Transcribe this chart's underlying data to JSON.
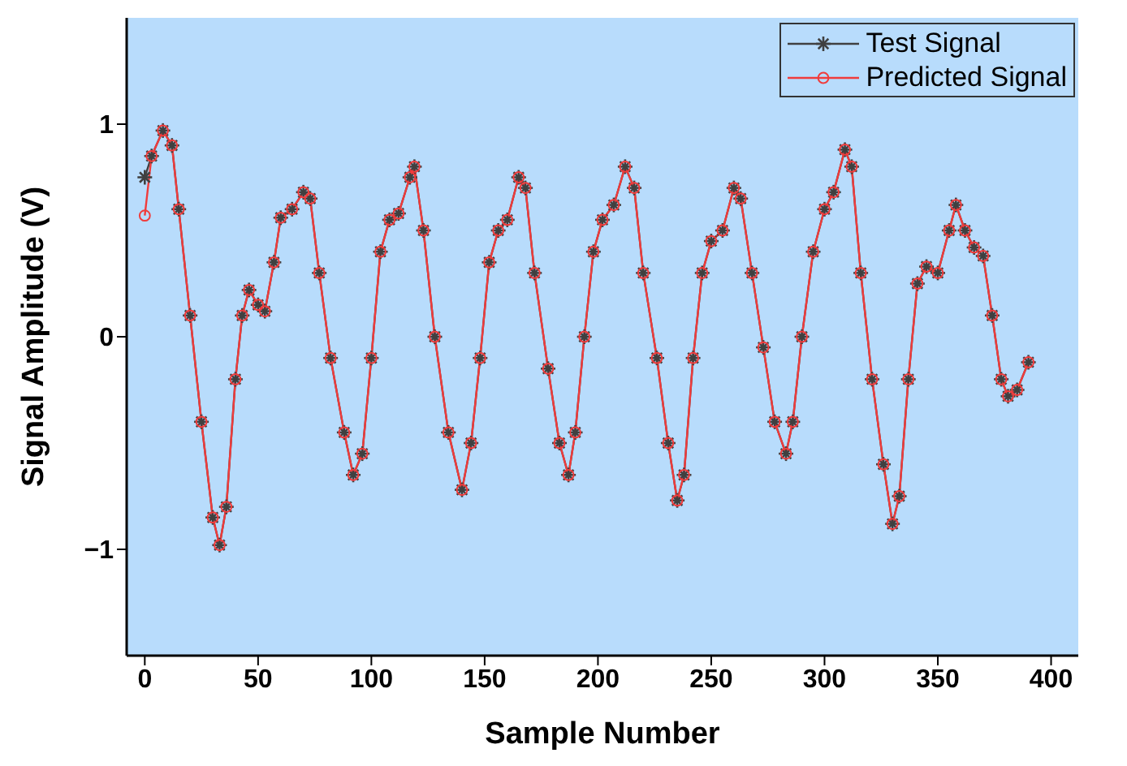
{
  "chart_data": {
    "type": "line",
    "xlabel": "Sample Number",
    "ylabel": "Signal Amplitude (V)",
    "xlim": [
      -8,
      412
    ],
    "ylim": [
      -1.5,
      1.5
    ],
    "xticks": [
      0,
      50,
      100,
      150,
      200,
      250,
      300,
      350,
      400
    ],
    "yticks": [
      -1,
      0,
      1
    ],
    "grid": false,
    "legend": "top right",
    "line_style": "solid",
    "x": [
      0,
      3,
      8,
      12,
      15,
      20,
      25,
      30,
      33,
      36,
      40,
      43,
      46,
      50,
      53,
      57,
      60,
      65,
      70,
      73,
      77,
      82,
      88,
      92,
      96,
      100,
      104,
      108,
      112,
      117,
      119,
      123,
      128,
      134,
      140,
      144,
      148,
      152,
      156,
      160,
      165,
      168,
      172,
      178,
      183,
      187,
      190,
      194,
      198,
      202,
      207,
      212,
      216,
      220,
      226,
      231,
      235,
      238,
      242,
      246,
      250,
      255,
      260,
      263,
      268,
      273,
      278,
      283,
      286,
      290,
      295,
      300,
      304,
      309,
      312,
      316,
      321,
      326,
      330,
      333,
      337,
      341,
      345,
      350,
      355,
      358,
      362,
      366,
      370,
      374,
      378,
      381,
      385,
      390
    ],
    "series": [
      {
        "name": "Test Signal",
        "color": "#404040",
        "marker": "cross",
        "values": [
          0.75,
          0.85,
          0.97,
          0.9,
          0.6,
          0.1,
          -0.4,
          -0.85,
          -0.98,
          -0.8,
          -0.2,
          0.1,
          0.22,
          0.15,
          0.12,
          0.35,
          0.56,
          0.6,
          0.68,
          0.65,
          0.3,
          -0.1,
          -0.45,
          -0.65,
          -0.55,
          -0.1,
          0.4,
          0.55,
          0.58,
          0.75,
          0.8,
          0.5,
          0.0,
          -0.45,
          -0.72,
          -0.5,
          -0.1,
          0.35,
          0.5,
          0.55,
          0.75,
          0.7,
          0.3,
          -0.15,
          -0.5,
          -0.65,
          -0.45,
          0.0,
          0.4,
          0.55,
          0.62,
          0.8,
          0.7,
          0.3,
          -0.1,
          -0.5,
          -0.77,
          -0.65,
          -0.1,
          0.3,
          0.45,
          0.5,
          0.7,
          0.65,
          0.3,
          -0.05,
          -0.4,
          -0.55,
          -0.4,
          0.0,
          0.4,
          0.6,
          0.68,
          0.88,
          0.8,
          0.3,
          -0.2,
          -0.6,
          -0.88,
          -0.75,
          -0.2,
          0.25,
          0.33,
          0.3,
          0.5,
          0.62,
          0.5,
          0.42,
          0.38,
          0.1,
          -0.2,
          -0.28,
          -0.25,
          -0.12
        ]
      },
      {
        "name": "Predicted Signal",
        "color": "#f03c3c",
        "marker": "circle",
        "values": [
          0.57,
          0.85,
          0.97,
          0.9,
          0.6,
          0.1,
          -0.4,
          -0.85,
          -0.98,
          -0.8,
          -0.2,
          0.1,
          0.22,
          0.15,
          0.12,
          0.35,
          0.56,
          0.6,
          0.68,
          0.65,
          0.3,
          -0.1,
          -0.45,
          -0.65,
          -0.55,
          -0.1,
          0.4,
          0.55,
          0.58,
          0.75,
          0.8,
          0.5,
          0.0,
          -0.45,
          -0.72,
          -0.5,
          -0.1,
          0.35,
          0.5,
          0.55,
          0.75,
          0.7,
          0.3,
          -0.15,
          -0.5,
          -0.65,
          -0.45,
          0.0,
          0.4,
          0.55,
          0.62,
          0.8,
          0.7,
          0.3,
          -0.1,
          -0.5,
          -0.77,
          -0.65,
          -0.1,
          0.3,
          0.45,
          0.5,
          0.7,
          0.65,
          0.3,
          -0.05,
          -0.4,
          -0.55,
          -0.4,
          0.0,
          0.4,
          0.6,
          0.68,
          0.88,
          0.8,
          0.3,
          -0.2,
          -0.6,
          -0.88,
          -0.75,
          -0.2,
          0.25,
          0.33,
          0.3,
          0.5,
          0.62,
          0.5,
          0.42,
          0.38,
          0.1,
          -0.2,
          -0.28,
          -0.25,
          -0.12
        ]
      }
    ]
  }
}
